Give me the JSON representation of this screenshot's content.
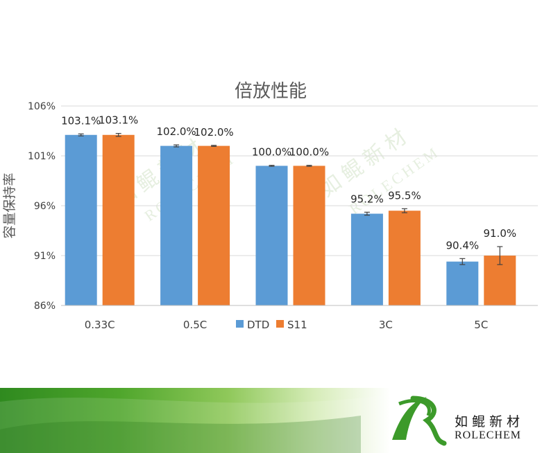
{
  "chart_data": {
    "type": "bar",
    "title": "倍放性能",
    "ylabel": "容量保持率",
    "xlabel": "",
    "categories": [
      "0.33C",
      "0.5C",
      "",
      "3C",
      "5C"
    ],
    "ylim": [
      86,
      106
    ],
    "yticks": [
      "86%",
      "91%",
      "96%",
      "101%",
      "106%"
    ],
    "ytick_values": [
      86,
      91,
      96,
      101,
      106
    ],
    "series": [
      {
        "name": "DTD",
        "color": "#5b9bd5",
        "values": [
          103.1,
          102.0,
          100.0,
          95.2,
          90.4
        ],
        "labels": [
          "103.1%",
          "102.0%",
          "100.0%",
          "95.2%",
          "90.4%"
        ],
        "errors": [
          0.1,
          0.1,
          0.05,
          0.15,
          0.3
        ]
      },
      {
        "name": "S11",
        "color": "#ed7d31",
        "values": [
          103.1,
          102.0,
          100.0,
          95.5,
          91.0
        ],
        "labels": [
          "103.1%",
          "102.0%",
          "100.0%",
          "95.5%",
          "91.0%"
        ],
        "errors": [
          0.15,
          0.05,
          0.05,
          0.2,
          0.9
        ]
      }
    ],
    "legend_position": "bottom-center",
    "grid": "horizontal"
  },
  "branding": {
    "watermark_cn": "如鲲新材",
    "watermark_en": "ROLECHEM",
    "logo_cn": "如鲲新材",
    "logo_en": "ROLECHEM",
    "accent_green": "#3c9a2a"
  }
}
